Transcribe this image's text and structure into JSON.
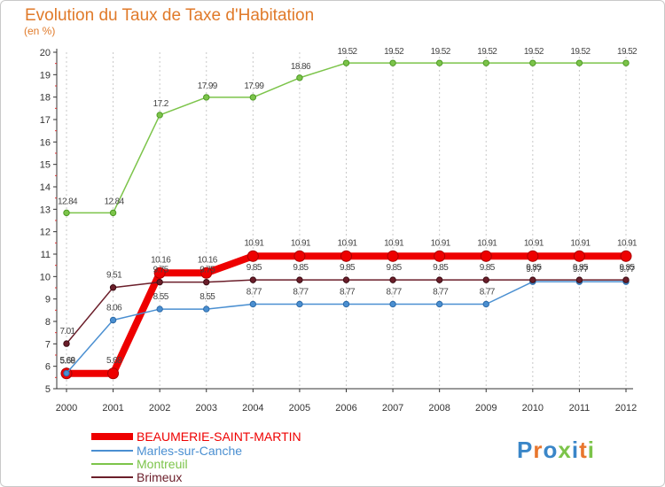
{
  "chart_data": {
    "type": "line",
    "title": "Evolution du Taux de Taxe d'Habitation",
    "subtitle": "(en %)",
    "xlabel": "",
    "ylabel": "",
    "x": [
      "2000",
      "2001",
      "2002",
      "2003",
      "2004",
      "2005",
      "2006",
      "2007",
      "2008",
      "2009",
      "2010",
      "2011",
      "2012"
    ],
    "ylim": [
      5,
      20
    ],
    "yticks": [
      "5",
      "6",
      "7",
      "8",
      "9",
      "10",
      "11",
      "12",
      "13",
      "14",
      "15",
      "16",
      "17",
      "18",
      "19",
      "20"
    ],
    "grid": "vertical dashed",
    "legend_position": "bottom-left",
    "series": [
      {
        "name": "BEAUMERIE-SAINT-MARTIN",
        "color": "#ee0000",
        "values": [
          5.68,
          5.68,
          10.16,
          10.16,
          10.91,
          10.91,
          10.91,
          10.91,
          10.91,
          10.91,
          10.91,
          10.91,
          10.91
        ],
        "labels": [
          "5.68",
          "5.68",
          "10.16",
          "10.16",
          "10.91",
          "10.91",
          "10.91",
          "10.91",
          "10.91",
          "10.91",
          "10.91",
          "10.91",
          "10.91"
        ]
      },
      {
        "name": "Marles-sur-Canche",
        "color": "#4a8fd1",
        "values": [
          5.69,
          8.06,
          8.55,
          8.55,
          8.77,
          8.77,
          8.77,
          8.77,
          8.77,
          8.77,
          9.77,
          9.77,
          9.77
        ],
        "labels": [
          "5.69",
          "8.06",
          "8.55",
          "8.55",
          "8.77",
          "8.77",
          "8.77",
          "8.77",
          "8.77",
          "8.77",
          "9.77",
          "9.77",
          "9.77"
        ]
      },
      {
        "name": "Montreuil",
        "color": "#7cc44a",
        "values": [
          12.84,
          12.84,
          17.2,
          17.99,
          17.99,
          18.86,
          19.52,
          19.52,
          19.52,
          19.52,
          19.52,
          19.52,
          19.52
        ],
        "labels": [
          "12.84",
          "12.84",
          "17.2",
          "17.99",
          "17.99",
          "18.86",
          "19.52",
          "19.52",
          "19.52",
          "19.52",
          "19.52",
          "19.52",
          "19.52"
        ]
      },
      {
        "name": "Brimeux",
        "color": "#6b1e2a",
        "values": [
          7.01,
          9.51,
          9.75,
          9.75,
          9.85,
          9.85,
          9.85,
          9.85,
          9.85,
          9.85,
          9.85,
          9.85,
          9.85
        ],
        "labels": [
          "7.01",
          "9.51",
          "9.75",
          "9.75",
          "9.85",
          "9.85",
          "9.85",
          "9.85",
          "9.85",
          "9.85",
          "9.85",
          "9.85",
          "9.85"
        ]
      }
    ]
  },
  "logo": {
    "text": "Proxiti",
    "letters": [
      "P",
      "r",
      "o",
      "x",
      "i",
      "t",
      "i"
    ],
    "colors": [
      "#3a86c8",
      "#e8762d",
      "#3a86c8",
      "#7cc44a",
      "#3a86c8",
      "#e8762d",
      "#7cc44a"
    ]
  }
}
